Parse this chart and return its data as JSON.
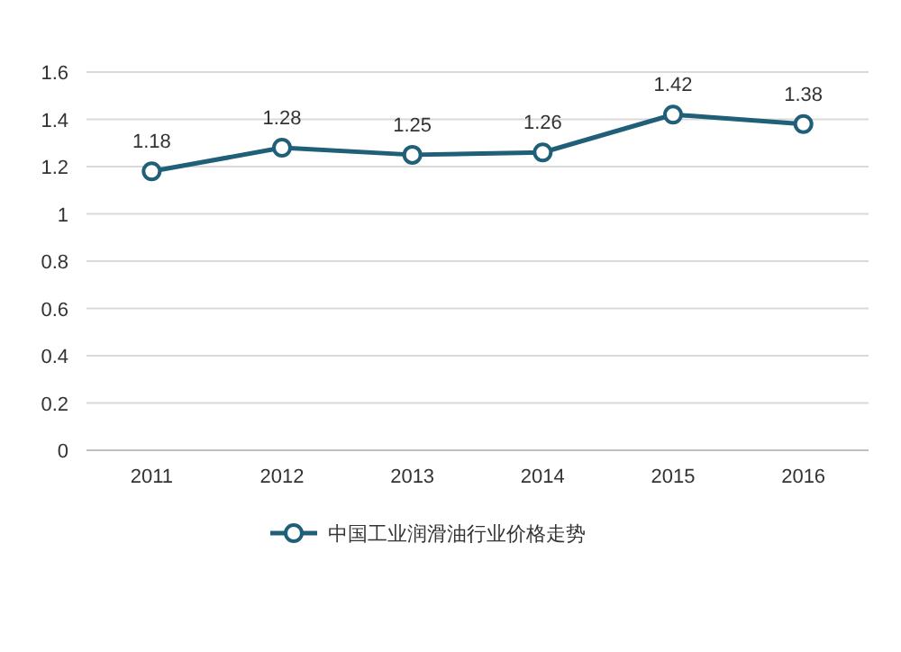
{
  "chart_data": {
    "type": "line",
    "categories": [
      "2011",
      "2012",
      "2013",
      "2014",
      "2015",
      "2016"
    ],
    "series": [
      {
        "name": "中国工业润滑油行业价格走势",
        "color": "#1f5f78",
        "values": [
          1.18,
          1.28,
          1.25,
          1.26,
          1.42,
          1.38
        ]
      }
    ],
    "ylim": [
      0,
      1.6
    ],
    "yticks": [
      0,
      0.2,
      0.4,
      0.6,
      0.8,
      1,
      1.2,
      1.4,
      1.6
    ],
    "grid": "y",
    "legend": "bottom",
    "marker": "circle",
    "line_style": "solid",
    "data_labels": true
  }
}
